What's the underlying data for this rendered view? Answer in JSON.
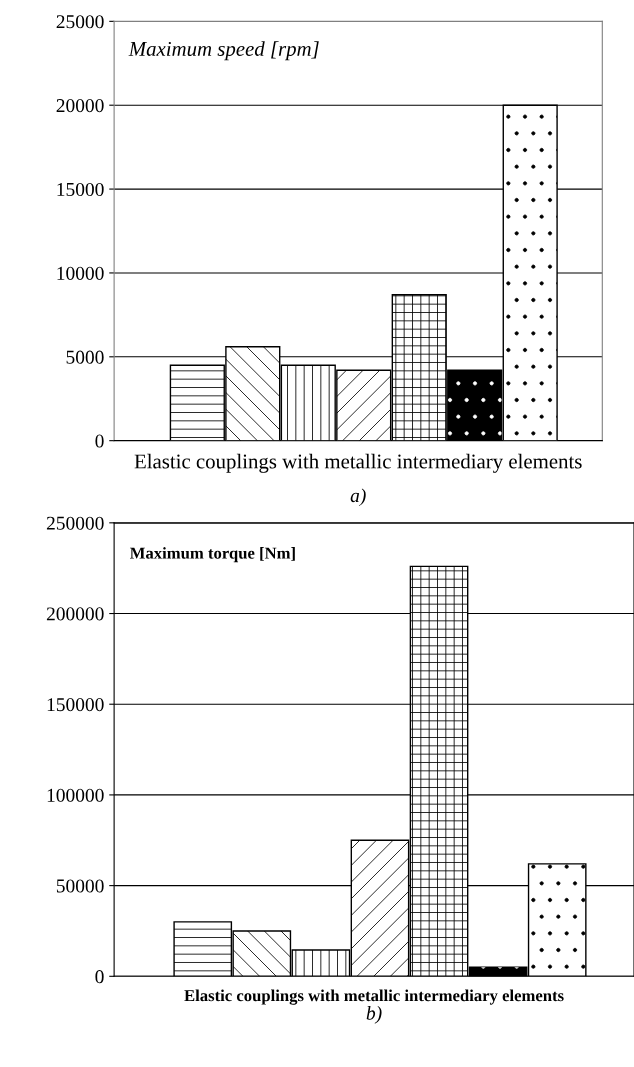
{
  "chart_data": [
    {
      "type": "bar",
      "title": "Maximum speed [rpm]",
      "xlabel": "Elastic couplings with metallic intermediary elements",
      "annotations": [
        "a)"
      ],
      "categories": [
        null,
        null,
        null,
        null,
        null,
        null,
        null
      ],
      "values": [
        4500,
        5600,
        4500,
        4200,
        8700,
        4200,
        20000
      ],
      "colors": [
        "#ffffff",
        "#ffffff",
        "#ffffff",
        "#ffffff",
        "#ffffff",
        "#000000",
        "#ffffff"
      ],
      "ylim": [
        0,
        25000
      ],
      "yticks": [
        0,
        5000,
        10000,
        15000,
        20000,
        25000
      ],
      "grid": "y",
      "legend": false
    },
    {
      "type": "bar",
      "title": "Maximum torque [Nm]",
      "xlabel": "Elastic couplings with metallic intermediary elements",
      "annotations": [
        "b)"
      ],
      "categories": [
        null,
        null,
        null,
        null,
        null,
        null,
        null
      ],
      "values": [
        30000,
        25000,
        14500,
        75000,
        226000,
        5000,
        62000
      ],
      "colors": [
        "#ffffff",
        "#ffffff",
        "#ffffff",
        "#ffffff",
        "#ffffff",
        "#000000",
        "#ffffff"
      ],
      "ylim": [
        0,
        250000
      ],
      "yticks": [
        0,
        50000,
        100000,
        150000,
        200000,
        250000
      ],
      "grid": "y",
      "legend": false
    }
  ]
}
